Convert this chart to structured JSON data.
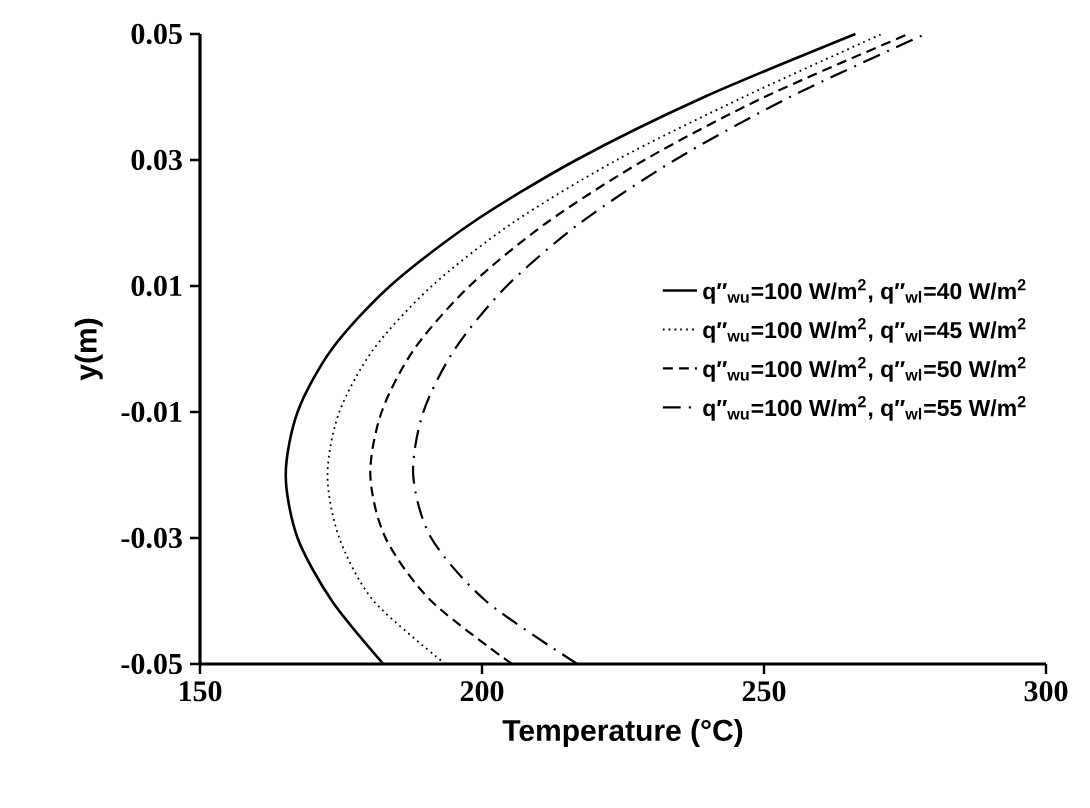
{
  "chart_data": {
    "type": "line",
    "xlabel": "Temperature (°C)",
    "ylabel": "y(m)",
    "xlim": [
      150,
      300
    ],
    "xticks": [
      150,
      200,
      250,
      300
    ],
    "ylim": [
      -0.05,
      0.05
    ],
    "yticks": [
      -0.05,
      -0.03,
      -0.01,
      0.01,
      0.03,
      0.05
    ],
    "grid": false,
    "legend": "right",
    "marker": "none",
    "series": [
      {
        "name": "q″$_{wu}$=100 W/m$^{2}$, q″$_{wl}$=40 W/m$^{2}$",
        "color": "#000000",
        "line_style": "solid",
        "x": [
          182.5,
          173.4,
          167.3,
          165.2,
          167.3,
          173.4,
          183.7,
          198.2,
          216.7,
          239.4,
          266.2
        ],
        "values": [
          -0.05,
          -0.04,
          -0.03,
          -0.02,
          -0.01,
          0,
          0.01,
          0.02,
          0.03,
          0.04,
          0.05
        ]
      },
      {
        "name": "q″$_{wu}$=100 W/m$^{2}$, q″$_{wl}$=45 W/m$^{2}$",
        "color": "#000000",
        "line_style": "dotted",
        "x": [
          193.5,
          180.8,
          174.7,
          172.6,
          174.7,
          180.8,
          191.1,
          205.4,
          223.9,
          246.4,
          270.9
        ],
        "values": [
          -0.05,
          -0.04,
          -0.03,
          -0.02,
          -0.01,
          0,
          0.01,
          0.02,
          0.03,
          0.04,
          0.05
        ]
      },
      {
        "name": "q″$_{wu}$=100 W/m$^{2}$, q″$_{wl}$=50 W/m$^{2}$",
        "color": "#000000",
        "line_style": "dashed",
        "x": [
          205.3,
          191.0,
          182.9,
          180.2,
          182.2,
          188.0,
          197.8,
          211.4,
          228.8,
          250.1,
          275.6
        ],
        "values": [
          -0.05,
          -0.04,
          -0.03,
          -0.02,
          -0.01,
          0,
          0.01,
          0.02,
          0.03,
          0.04,
          0.05
        ]
      },
      {
        "name": "q″$_{wu}$=100 W/m$^{2}$, q″$_{wl}$=55 W/m$^{2}$",
        "color": "#000000",
        "line_style": "dashdot",
        "x": [
          216.9,
          200.7,
          191.0,
          187.8,
          189.6,
          195.2,
          204.4,
          217.4,
          234.2,
          254.6,
          278.6
        ],
        "values": [
          -0.05,
          -0.04,
          -0.03,
          -0.02,
          -0.01,
          0,
          0.01,
          0.02,
          0.03,
          0.04,
          0.05
        ]
      }
    ]
  }
}
